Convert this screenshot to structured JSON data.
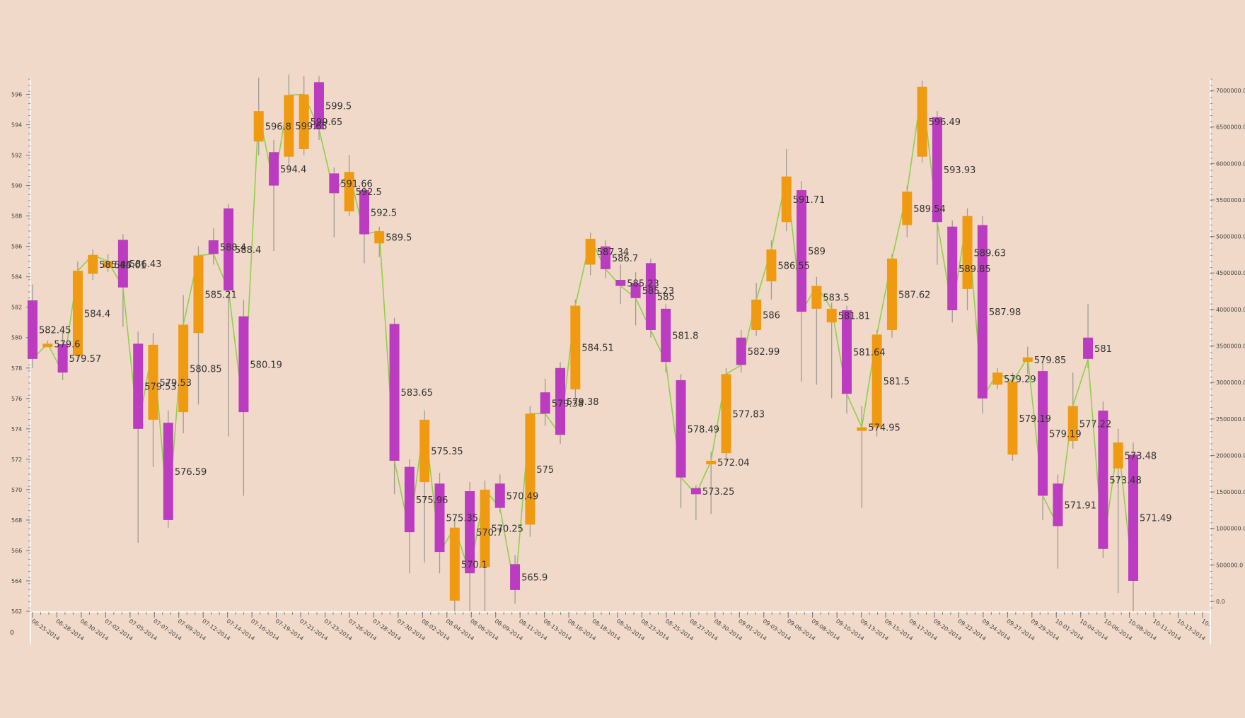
{
  "chart_data": {
    "type": "candlestick",
    "title": "",
    "colors": {
      "background": "#f0d9c8",
      "up": "#f09a11",
      "down": "#bb3cc0",
      "close_line": "#8fd04a",
      "axis": "#ffffff",
      "wick": "#a09a94",
      "label": "#333333"
    },
    "corner_label": "0",
    "y_left": {
      "min": 562,
      "max": 597,
      "ticks": [
        "562",
        "564",
        "566",
        "568",
        "570",
        "572",
        "574",
        "576",
        "578",
        "580",
        "582",
        "584",
        "586",
        "588",
        "590",
        "592",
        "594",
        "596"
      ]
    },
    "y_right": {
      "ticks": [
        "0.0",
        "500000.0",
        "1000000.0",
        "1500000.0",
        "2000000.0",
        "2500000.0",
        "3000000.0",
        "3500000.0",
        "4000000.0",
        "4500000.0",
        "5000000.0",
        "5500000.0",
        "6000000.0",
        "6500000.0",
        "7000000.0"
      ]
    },
    "x_ticks": [
      "06-25-2014",
      "06-28-2014",
      "06-30-2014",
      "07-02-2014",
      "07-05-2014",
      "07-07-2014",
      "07-09-2014",
      "07-12-2014",
      "07-14-2014",
      "07-16-2014",
      "07-19-2014",
      "07-21-2014",
      "07-23-2014",
      "07-26-2014",
      "07-28-2014",
      "07-30-2014",
      "08-02-2014",
      "08-04-2014",
      "08-06-2014",
      "08-09-2014",
      "08-11-2014",
      "08-13-2014",
      "08-16-2014",
      "08-18-2014",
      "08-20-2014",
      "08-23-2014",
      "08-25-2014",
      "08-27-2014",
      "08-30-2014",
      "09-01-2014",
      "09-03-2014",
      "09-06-2014",
      "09-08-2014",
      "09-10-2014",
      "09-13-2014",
      "09-15-2014",
      "09-17-2014",
      "09-20-2014",
      "09-22-2014",
      "09-24-2014",
      "09-27-2014",
      "09-29-2014",
      "10-01-2014",
      "10-04-2014",
      "10-06-2014",
      "10-08-2014",
      "10-11-2014",
      "10-13-2014",
      "10-"
    ],
    "candles": [
      {
        "open": 582.45,
        "close": 578.6,
        "high": 583.5,
        "low": 578.0,
        "label": "582.45"
      },
      {
        "open": 579.6,
        "close": 579.6,
        "high": 579.8,
        "low": 579.4,
        "label": "579.6"
      },
      {
        "open": 579.57,
        "close": 577.7,
        "high": 580.5,
        "low": 577.2,
        "label": "579.57"
      },
      {
        "open": 578.8,
        "close": 584.4,
        "high": 585.0,
        "low": 578.5,
        "label": "584.4"
      },
      {
        "open": 584.2,
        "close": 585.44,
        "high": 585.8,
        "low": 583.8,
        "label": "585.44"
      },
      {
        "open": 584.6,
        "close": 585.01,
        "high": 585.5,
        "low": 584.3,
        "label": "585.01"
      },
      {
        "open": 586.43,
        "close": 583.3,
        "high": 586.8,
        "low": 580.7,
        "label": "586.43"
      },
      {
        "open": 579.6,
        "close": 574.0,
        "high": 580.4,
        "low": 566.5,
        "label": "579.53"
      },
      {
        "open": 574.6,
        "close": 579.53,
        "high": 580.3,
        "low": 571.5,
        "label": "579.53"
      },
      {
        "open": 574.4,
        "close": 568.0,
        "high": 575.2,
        "low": 567.5,
        "label": "576.59"
      },
      {
        "open": 575.1,
        "close": 580.85,
        "high": 582.8,
        "low": 573.7,
        "label": "580.85"
      },
      {
        "open": 580.3,
        "close": 585.4,
        "high": 586.0,
        "low": 575.6,
        "label": "585.21"
      },
      {
        "open": 586.4,
        "close": 585.5,
        "high": 587.2,
        "low": 584.8,
        "label": "588.4"
      },
      {
        "open": 588.5,
        "close": 583.1,
        "high": 588.8,
        "low": 573.5,
        "label": "588.4"
      },
      {
        "open": 581.4,
        "close": 575.1,
        "high": 582.5,
        "low": 569.6,
        "label": "580.19"
      },
      {
        "open": 592.9,
        "close": 594.9,
        "high": 597.1,
        "low": 592.0,
        "label": "596.8"
      },
      {
        "open": 592.2,
        "close": 590.0,
        "high": 593.0,
        "low": 585.7,
        "label": "594.4"
      },
      {
        "open": 591.9,
        "close": 595.95,
        "high": 597.3,
        "low": 591.0,
        "label": "599.65"
      },
      {
        "open": 592.4,
        "close": 596.0,
        "high": 597.2,
        "low": 592.0,
        "label": "599.65"
      },
      {
        "open": 596.8,
        "close": 593.7,
        "high": 597.2,
        "low": 593.0,
        "label": "599.5"
      },
      {
        "open": 590.8,
        "close": 589.5,
        "high": 591.2,
        "low": 586.6,
        "label": "591.66"
      },
      {
        "open": 588.3,
        "close": 590.9,
        "high": 592.0,
        "low": 588.0,
        "label": "592.5"
      },
      {
        "open": 589.7,
        "close": 586.8,
        "high": 590.0,
        "low": 584.9,
        "label": "592.5"
      },
      {
        "open": 586.2,
        "close": 587.0,
        "high": 587.3,
        "low": 585.3,
        "label": "589.5"
      },
      {
        "open": 580.9,
        "close": 571.9,
        "high": 581.3,
        "low": 569.7,
        "label": "583.65"
      },
      {
        "open": 571.5,
        "close": 567.2,
        "high": 572.0,
        "low": 564.5,
        "label": "575.96"
      },
      {
        "open": 570.5,
        "close": 574.6,
        "high": 575.2,
        "low": 565.2,
        "label": "575.35"
      },
      {
        "open": 570.4,
        "close": 565.9,
        "high": 571.1,
        "low": 564.5,
        "label": "575.35"
      },
      {
        "open": 562.7,
        "close": 567.5,
        "high": 568.0,
        "low": 562.0,
        "label": "570.1"
      },
      {
        "open": 569.9,
        "close": 564.5,
        "high": 570.5,
        "low": 562.0,
        "label": "570.7"
      },
      {
        "open": 564.9,
        "close": 570.0,
        "high": 570.6,
        "low": 562.0,
        "label": "570.25"
      },
      {
        "open": 570.4,
        "close": 568.8,
        "high": 571.0,
        "low": 568.5,
        "label": "570.49"
      },
      {
        "open": 565.1,
        "close": 563.4,
        "high": 565.7,
        "low": 562.5,
        "label": "565.9"
      },
      {
        "open": 567.7,
        "close": 575.0,
        "high": 575.5,
        "low": 566.9,
        "label": "575"
      },
      {
        "open": 576.4,
        "close": 575.0,
        "high": 577.3,
        "low": 574.2,
        "label": "579.38"
      },
      {
        "open": 578.0,
        "close": 573.6,
        "high": 578.4,
        "low": 573.0,
        "label": "579.38"
      },
      {
        "open": 576.6,
        "close": 582.1,
        "high": 582.5,
        "low": 576.0,
        "label": "584.51"
      },
      {
        "open": 584.8,
        "close": 586.5,
        "high": 586.9,
        "low": 584.1,
        "label": "587.34"
      },
      {
        "open": 586.0,
        "close": 584.5,
        "high": 586.4,
        "low": 583.9,
        "label": "586.7"
      },
      {
        "open": 583.8,
        "close": 583.4,
        "high": 584.8,
        "low": 582.2,
        "label": "585.23"
      },
      {
        "open": 583.6,
        "close": 582.6,
        "high": 584.3,
        "low": 580.8,
        "label": "585.23"
      },
      {
        "open": 584.9,
        "close": 580.5,
        "high": 585.2,
        "low": 580.0,
        "label": "585"
      },
      {
        "open": 581.9,
        "close": 578.4,
        "high": 582.2,
        "low": 577.7,
        "label": "581.8"
      },
      {
        "open": 577.2,
        "close": 570.8,
        "high": 577.6,
        "low": 568.8,
        "label": "578.49"
      },
      {
        "open": 570.1,
        "close": 569.7,
        "high": 570.3,
        "low": 568.0,
        "label": "573.25"
      },
      {
        "open": 571.7,
        "close": 571.9,
        "high": 572.5,
        "low": 568.4,
        "label": "572.04"
      },
      {
        "open": 572.4,
        "close": 577.6,
        "high": 578.0,
        "low": 571.9,
        "label": "577.83"
      },
      {
        "open": 580.0,
        "close": 578.2,
        "high": 580.5,
        "low": 577.7,
        "label": "582.99"
      },
      {
        "open": 580.5,
        "close": 582.5,
        "high": 583.6,
        "low": 580.1,
        "label": "586"
      },
      {
        "open": 583.7,
        "close": 585.8,
        "high": 586.4,
        "low": 582.5,
        "label": "586.55"
      },
      {
        "open": 587.6,
        "close": 590.6,
        "high": 592.4,
        "low": 587.0,
        "label": "591.71"
      },
      {
        "open": 589.7,
        "close": 581.7,
        "high": 590.3,
        "low": 577.1,
        "label": "589"
      },
      {
        "open": 581.9,
        "close": 583.4,
        "high": 584.0,
        "low": 576.9,
        "label": "583.5"
      },
      {
        "open": 581.0,
        "close": 581.9,
        "high": 582.3,
        "low": 576.0,
        "label": "581.81"
      },
      {
        "open": 581.8,
        "close": 576.3,
        "high": 582.1,
        "low": 575.0,
        "label": "581.64"
      },
      {
        "open": 574.1,
        "close": 574.1,
        "high": 575.5,
        "low": 568.8,
        "label": "574.95"
      },
      {
        "open": 574.1,
        "close": 580.2,
        "high": 580.5,
        "low": 573.5,
        "label": "581.5"
      },
      {
        "open": 580.5,
        "close": 585.2,
        "high": 585.5,
        "low": 580.0,
        "label": "587.62"
      },
      {
        "open": 587.4,
        "close": 589.6,
        "high": 590.0,
        "low": 586.6,
        "label": "589.54"
      },
      {
        "open": 591.9,
        "close": 596.5,
        "high": 596.9,
        "low": 591.5,
        "label": "596.49"
      },
      {
        "open": 594.5,
        "close": 587.6,
        "high": 594.9,
        "low": 584.8,
        "label": "593.93"
      },
      {
        "open": 587.3,
        "close": 581.8,
        "high": 587.7,
        "low": 581.0,
        "label": "589.85"
      },
      {
        "open": 583.2,
        "close": 588.0,
        "high": 588.5,
        "low": 581.8,
        "label": "589.63"
      },
      {
        "open": 587.4,
        "close": 576.0,
        "high": 588.0,
        "low": 575.0,
        "label": "587.98"
      },
      {
        "open": 576.9,
        "close": 577.7,
        "high": 578.0,
        "low": 576.6,
        "label": "579.29"
      },
      {
        "open": 572.3,
        "close": 577.1,
        "high": 577.7,
        "low": 571.9,
        "label": "579.19"
      },
      {
        "open": 578.4,
        "close": 578.7,
        "high": 579.4,
        "low": 577.6,
        "label": "579.85"
      },
      {
        "open": 577.8,
        "close": 569.6,
        "high": 578.4,
        "low": 568.0,
        "label": "579.19"
      },
      {
        "open": 570.4,
        "close": 567.6,
        "high": 571.0,
        "low": 564.8,
        "label": "571.91"
      },
      {
        "open": 573.2,
        "close": 575.5,
        "high": 577.7,
        "low": 572.7,
        "label": "577.22"
      },
      {
        "open": 580.0,
        "close": 578.6,
        "high": 582.2,
        "low": 578.0,
        "label": "581"
      },
      {
        "open": 575.2,
        "close": 566.1,
        "high": 575.8,
        "low": 565.5,
        "label": "573.48"
      },
      {
        "open": 571.4,
        "close": 573.1,
        "high": 574.0,
        "low": 563.2,
        "label": "573.48"
      },
      {
        "open": 572.3,
        "close": 564.0,
        "high": 573.1,
        "low": 562.0,
        "label": "571.49"
      }
    ],
    "close_line": true,
    "grid": false,
    "legend": "none"
  }
}
